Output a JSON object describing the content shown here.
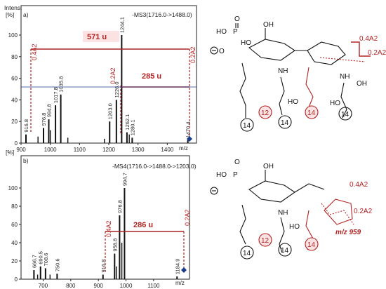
{
  "chart_data": [
    {
      "type": "bar",
      "panel": "a)",
      "title": "-MS3(1716.0->1488.0)",
      "ylabel_line1": "Intens.",
      "ylabel_line2": "[%]",
      "xlabel": "m/z",
      "xlim": [
        900,
        1500
      ],
      "ylim": [
        0,
        100
      ],
      "xticks": [
        900,
        1000,
        1100,
        1200,
        1300,
        1400
      ],
      "yticks": [
        0,
        20,
        40,
        60,
        80,
        100
      ],
      "peaks": [
        {
          "mz": 916.8,
          "y": 8,
          "label": "916.8"
        },
        {
          "mz": 976.8,
          "y": 14,
          "label": "976.8"
        },
        {
          "mz": 994.8,
          "y": 22,
          "label": "994.8"
        },
        {
          "mz": 1017.8,
          "y": 35,
          "label": "1017.8"
        },
        {
          "mz": 1035.8,
          "y": 45,
          "label": "1035.8"
        },
        {
          "mz": 1203.0,
          "y": 20,
          "label": "1203.0"
        },
        {
          "mz": 1226.0,
          "y": 40,
          "label": "1226.0"
        },
        {
          "mz": 1244.1,
          "y": 100,
          "label": "1244.1"
        },
        {
          "mz": 1262.1,
          "y": 10,
          "label": "1262.1"
        },
        {
          "mz": 1280.1,
          "y": 5,
          "label": "1280.1"
        },
        {
          "mz": 1470.4,
          "y": 3,
          "label": "1470.4"
        }
      ],
      "minor_peaks": [
        {
          "mz": 958,
          "y": 6
        },
        {
          "mz": 1000,
          "y": 12
        },
        {
          "mz": 1060,
          "y": 5
        },
        {
          "mz": 1185,
          "y": 4
        },
        {
          "mz": 1270,
          "y": 8
        }
      ],
      "annotations": {
        "left_fragment": "0.4A2",
        "right_fragment": "0.2A2",
        "big_loss": "571 u",
        "small_loss": "285 u"
      }
    },
    {
      "type": "bar",
      "panel": "b)",
      "title": "-MS4(1716.0->1488.0->1203.0)",
      "ylabel_line2": "[%]",
      "xlabel": "m/z",
      "xlim": [
        620,
        1230
      ],
      "ylim": [
        0,
        100
      ],
      "xticks": [
        700,
        800,
        900,
        1000,
        1100
      ],
      "yticks": [
        0,
        20,
        40,
        60,
        80,
        100
      ],
      "peaks": [
        {
          "mz": 666.7,
          "y": 10,
          "label": "666.7"
        },
        {
          "mz": 690.5,
          "y": 14,
          "label": "690.5"
        },
        {
          "mz": 708.6,
          "y": 12,
          "label": "708.6"
        },
        {
          "mz": 750.6,
          "y": 6,
          "label": "750.6"
        },
        {
          "mz": 916.8,
          "y": 5,
          "label": "916.8"
        },
        {
          "mz": 958.8,
          "y": 28,
          "label": "958.8"
        },
        {
          "mz": 976.8,
          "y": 70,
          "label": "976.8"
        },
        {
          "mz": 994.7,
          "y": 100,
          "label": "994.7"
        },
        {
          "mz": 1184.9,
          "y": 3,
          "label": "1184.9"
        }
      ],
      "minor_peaks": [
        {
          "mz": 680,
          "y": 5
        },
        {
          "mz": 725,
          "y": 5
        },
        {
          "mz": 965,
          "y": 14
        },
        {
          "mz": 985,
          "y": 40
        }
      ],
      "annotations": {
        "left_fragment": "0.4A2",
        "right_fragment": "0.2A2",
        "loss": "286 u"
      }
    }
  ],
  "structures": {
    "top": {
      "hopo": "HO",
      "p": "P",
      "o_eq": "O",
      "ho2": "HO",
      "o_minus": "O",
      "oh_top": "OH",
      "nh": "NH",
      "nh2": "NH",
      "oh_right": "OH",
      "ho_left": "HO",
      "ho_mid": "HO",
      "chains": [
        "14",
        "12",
        "14",
        "14",
        "14"
      ],
      "frag_a": "0.4A2",
      "frag_b": "0.2A2"
    },
    "bottom": {
      "hopo": "HO",
      "p": "P",
      "o_eq": "O",
      "oh_top": "OH",
      "nh": "NH",
      "ho_mid": "HO",
      "chains": [
        "14",
        "12",
        "14",
        "14"
      ],
      "frag_a": "0.4A2",
      "frag_b": "0.2A2",
      "mz_label": "m/z 959"
    }
  },
  "colors": {
    "accent": "#b22222",
    "marker": "#1a3d8f",
    "axis": "#222222"
  }
}
